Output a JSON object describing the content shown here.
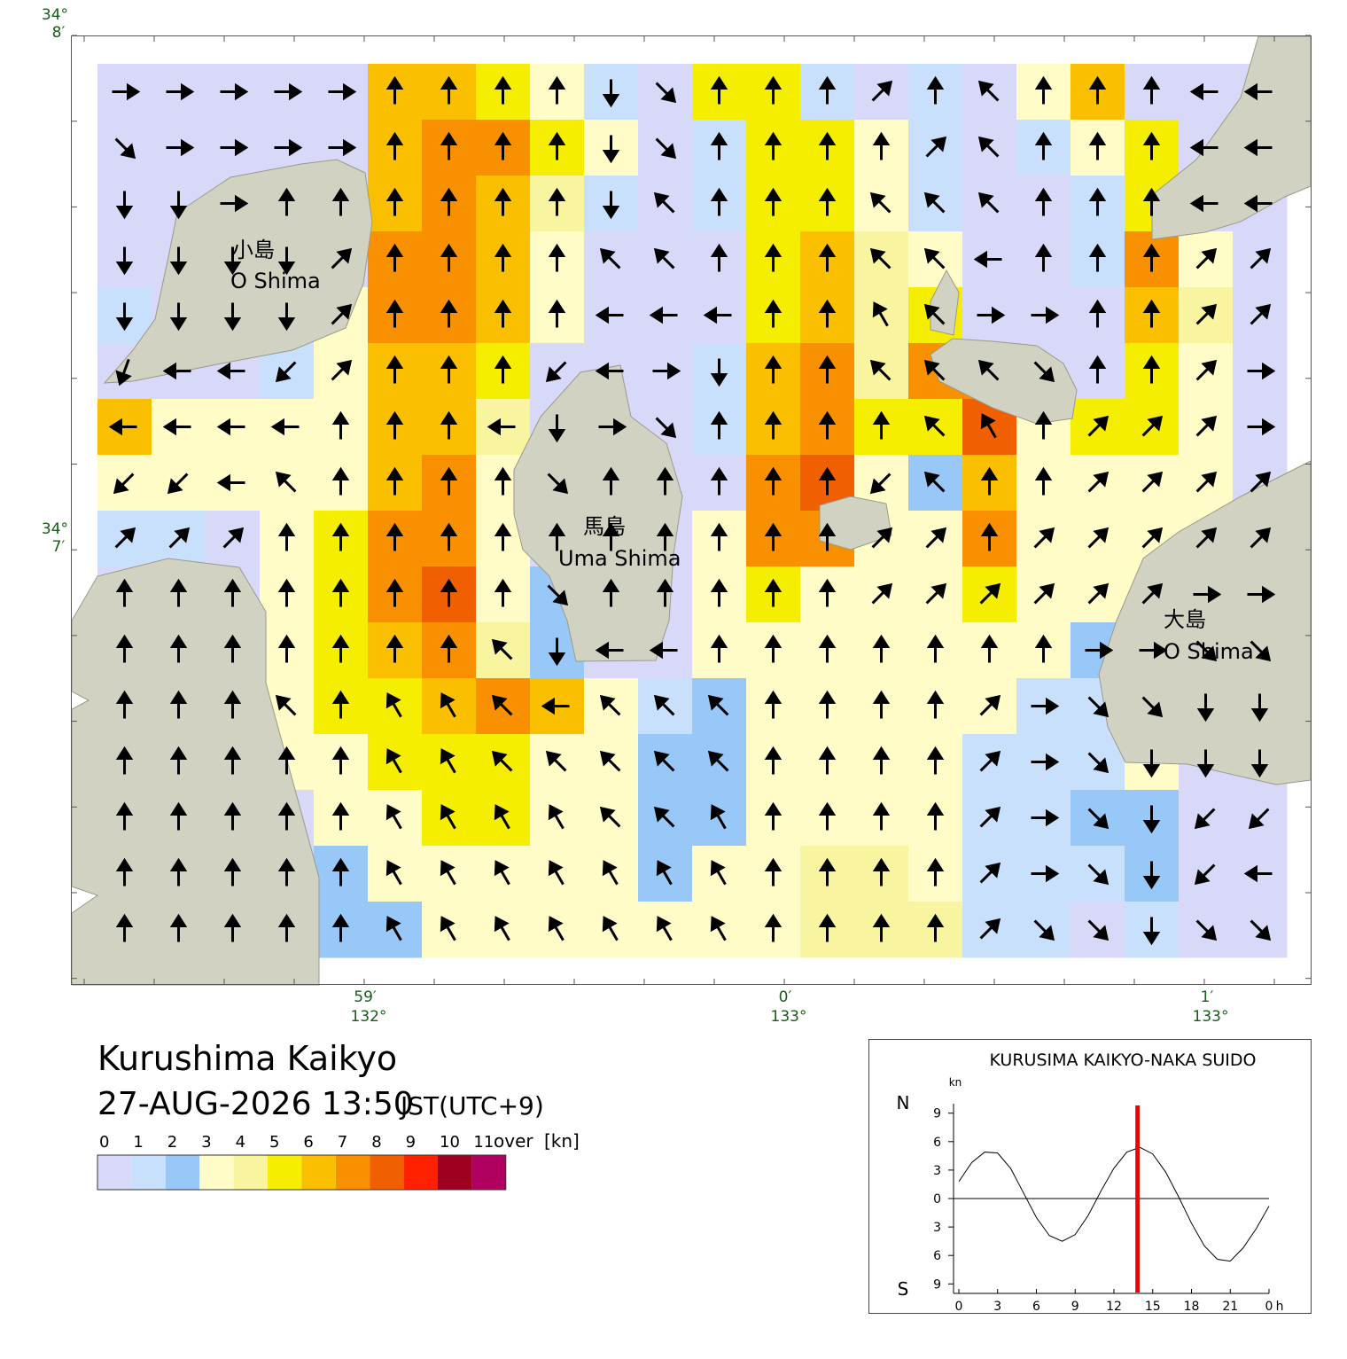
{
  "map": {
    "lat_labels": [
      {
        "deg": "34°",
        "min": "8′"
      },
      {
        "deg": "34°",
        "min": "7′"
      }
    ],
    "lon_labels": [
      {
        "min": "59′",
        "deg": "132°"
      },
      {
        "min": "0′",
        "deg": "133°"
      },
      {
        "min": "1′",
        "deg": "133°"
      }
    ],
    "places": [
      {
        "ja": "小島",
        "en": "O Shima"
      },
      {
        "ja": "馬島",
        "en": "Uma Shima"
      },
      {
        "ja": "大島",
        "en": "O Shima"
      }
    ],
    "speed": [
      [
        0,
        0,
        0,
        0,
        0,
        6,
        6,
        5,
        3,
        1,
        0,
        5,
        5,
        1,
        0,
        1,
        0,
        3,
        6,
        0,
        0,
        0
      ],
      [
        0,
        0,
        0,
        0,
        0,
        6,
        7,
        7,
        5,
        3,
        0,
        1,
        5,
        5,
        3,
        1,
        0,
        1,
        3,
        5,
        0,
        0
      ],
      [
        0,
        0,
        0,
        0,
        0,
        6,
        7,
        6,
        4,
        1,
        0,
        1,
        5,
        5,
        3,
        1,
        0,
        0,
        1,
        5,
        0,
        0
      ],
      [
        0,
        0,
        0,
        0,
        0,
        7,
        7,
        6,
        3,
        0,
        0,
        0,
        5,
        6,
        4,
        3,
        0,
        0,
        1,
        7,
        3,
        0
      ],
      [
        1,
        0,
        0,
        0,
        3,
        7,
        7,
        6,
        3,
        0,
        0,
        0,
        5,
        6,
        4,
        5,
        0,
        0,
        0,
        6,
        4,
        0
      ],
      [
        0,
        0,
        0,
        1,
        3,
        6,
        6,
        5,
        0,
        0,
        0,
        1,
        6,
        7,
        4,
        7,
        7,
        0,
        0,
        5,
        3,
        0
      ],
      [
        6,
        3,
        3,
        3,
        3,
        6,
        6,
        4,
        0,
        0,
        0,
        1,
        6,
        7,
        5,
        5,
        8,
        3,
        5,
        5,
        3,
        0
      ],
      [
        3,
        3,
        3,
        3,
        3,
        6,
        7,
        3,
        0,
        0,
        0,
        0,
        7,
        8,
        3,
        2,
        6,
        3,
        3,
        3,
        3,
        0
      ],
      [
        1,
        1,
        0,
        3,
        5,
        7,
        7,
        3,
        0,
        0,
        0,
        3,
        7,
        7,
        3,
        3,
        7,
        3,
        3,
        3,
        3,
        0
      ],
      [
        0,
        0,
        0,
        3,
        5,
        7,
        8,
        3,
        2,
        0,
        0,
        3,
        5,
        3,
        3,
        3,
        5,
        3,
        3,
        3,
        0,
        0
      ],
      [
        0,
        0,
        0,
        3,
        5,
        6,
        7,
        4,
        2,
        0,
        0,
        3,
        3,
        3,
        3,
        3,
        3,
        3,
        2,
        0,
        0,
        0
      ],
      [
        0,
        0,
        0,
        3,
        5,
        5,
        6,
        7,
        6,
        3,
        1,
        2,
        3,
        3,
        3,
        3,
        3,
        1,
        1,
        0,
        0,
        0
      ],
      [
        0,
        0,
        0,
        3,
        3,
        5,
        5,
        5,
        3,
        3,
        2,
        2,
        3,
        3,
        3,
        3,
        1,
        1,
        1,
        3,
        0,
        0
      ],
      [
        0,
        0,
        0,
        0,
        3,
        3,
        5,
        5,
        3,
        3,
        2,
        2,
        3,
        3,
        3,
        3,
        1,
        1,
        2,
        2,
        0,
        0
      ],
      [
        0,
        0,
        0,
        0,
        2,
        3,
        3,
        3,
        3,
        3,
        2,
        3,
        3,
        4,
        4,
        3,
        1,
        1,
        1,
        2,
        0,
        0
      ],
      [
        0,
        0,
        0,
        0,
        2,
        2,
        3,
        3,
        3,
        3,
        3,
        3,
        3,
        4,
        4,
        4,
        1,
        1,
        0,
        1,
        0,
        0
      ]
    ],
    "direction": [
      [
        90,
        90,
        90,
        90,
        90,
        0,
        0,
        0,
        0,
        180,
        135,
        0,
        0,
        0,
        45,
        0,
        315,
        0,
        0,
        0,
        270,
        270
      ],
      [
        135,
        90,
        90,
        90,
        90,
        0,
        0,
        0,
        0,
        180,
        135,
        0,
        0,
        0,
        0,
        45,
        315,
        0,
        0,
        0,
        270,
        270
      ],
      [
        180,
        180,
        90,
        0,
        0,
        0,
        0,
        0,
        0,
        180,
        315,
        0,
        0,
        0,
        315,
        315,
        315,
        0,
        0,
        0,
        270,
        270
      ],
      [
        180,
        180,
        180,
        180,
        45,
        0,
        0,
        0,
        0,
        315,
        315,
        0,
        0,
        0,
        315,
        315,
        270,
        0,
        0,
        0,
        45,
        45
      ],
      [
        180,
        180,
        180,
        180,
        45,
        0,
        0,
        0,
        0,
        270,
        270,
        270,
        0,
        0,
        330,
        315,
        90,
        90,
        0,
        0,
        45,
        45
      ],
      [
        200,
        270,
        270,
        225,
        45,
        0,
        0,
        0,
        225,
        270,
        90,
        180,
        0,
        0,
        315,
        315,
        315,
        135,
        0,
        0,
        45,
        90
      ],
      [
        270,
        270,
        270,
        270,
        0,
        0,
        0,
        270,
        180,
        90,
        135,
        0,
        0,
        0,
        0,
        315,
        330,
        0,
        45,
        45,
        45,
        90
      ],
      [
        225,
        225,
        270,
        315,
        0,
        0,
        0,
        0,
        135,
        0,
        0,
        0,
        0,
        0,
        225,
        315,
        0,
        0,
        45,
        45,
        45,
        45
      ],
      [
        45,
        45,
        45,
        0,
        0,
        0,
        0,
        0,
        0,
        0,
        0,
        0,
        0,
        0,
        45,
        45,
        0,
        45,
        45,
        45,
        45,
        45
      ],
      [
        0,
        0,
        0,
        0,
        0,
        0,
        0,
        0,
        135,
        0,
        0,
        0,
        0,
        0,
        45,
        45,
        45,
        45,
        45,
        45,
        90,
        90
      ],
      [
        0,
        0,
        0,
        0,
        0,
        0,
        0,
        315,
        180,
        270,
        270,
        0,
        0,
        0,
        0,
        0,
        0,
        0,
        90,
        90,
        135,
        135
      ],
      [
        0,
        0,
        0,
        315,
        0,
        330,
        330,
        315,
        270,
        315,
        315,
        315,
        0,
        0,
        0,
        0,
        45,
        90,
        135,
        135,
        180,
        180
      ],
      [
        0,
        0,
        0,
        0,
        0,
        330,
        330,
        315,
        315,
        315,
        315,
        315,
        0,
        0,
        0,
        0,
        45,
        90,
        135,
        180,
        180,
        180
      ],
      [
        0,
        0,
        0,
        0,
        0,
        330,
        330,
        330,
        330,
        315,
        315,
        330,
        0,
        0,
        0,
        0,
        45,
        90,
        135,
        180,
        225,
        225
      ],
      [
        0,
        0,
        0,
        0,
        0,
        330,
        330,
        330,
        330,
        330,
        330,
        330,
        0,
        0,
        0,
        0,
        45,
        90,
        135,
        180,
        225,
        270
      ],
      [
        0,
        0,
        0,
        0,
        0,
        330,
        330,
        330,
        330,
        330,
        330,
        330,
        0,
        0,
        0,
        0,
        45,
        135,
        135,
        180,
        135,
        135
      ]
    ]
  },
  "title": {
    "name": "Kurushima Kaikyo",
    "datetime": "27-AUG-2026 13:50",
    "zone": "JST(UTC+9)"
  },
  "legend": {
    "levels": [
      0,
      1,
      2,
      3,
      4,
      5,
      6,
      7,
      8,
      9,
      10,
      11
    ],
    "over": "over",
    "unit": "[kn]",
    "colors": [
      "#d8d8f8",
      "#c8e0fc",
      "#98c8f8",
      "#fffcc8",
      "#f8f4a0",
      "#f5ee00",
      "#fac000",
      "#f89000",
      "#f06000",
      "#ff2000",
      "#a00020",
      "#b00060"
    ]
  },
  "tide_chart": {
    "type": "line",
    "title": "KURUSIMA KAIKYO-NAKA SUIDO",
    "unit": "kn",
    "north": "N",
    "south": "S",
    "x_unit": "h",
    "x": [
      0,
      1,
      2,
      3,
      4,
      5,
      6,
      7,
      8,
      9,
      10,
      11,
      12,
      13,
      14,
      15,
      16,
      17,
      18,
      19,
      20,
      21,
      22,
      23,
      24
    ],
    "values": [
      1.8,
      3.8,
      4.9,
      4.8,
      3.2,
      0.6,
      -2.0,
      -3.9,
      -4.5,
      -3.8,
      -1.8,
      0.8,
      3.2,
      4.9,
      5.4,
      4.7,
      2.8,
      0.2,
      -2.6,
      -5.0,
      -6.4,
      -6.6,
      -5.2,
      -3.2,
      -0.8
    ],
    "xlim": [
      0,
      24
    ],
    "xticks": [
      0,
      3,
      6,
      9,
      12,
      15,
      18,
      21,
      {
        "value": 24,
        "label": "0"
      }
    ],
    "ylim": [
      -10,
      10
    ],
    "yticks": [
      {
        "value": -9,
        "label": "9"
      },
      {
        "value": -6,
        "label": "6"
      },
      {
        "value": -3,
        "label": "3"
      },
      0,
      3,
      6,
      9
    ],
    "now": 13.83,
    "now_color": "#ee0000"
  }
}
